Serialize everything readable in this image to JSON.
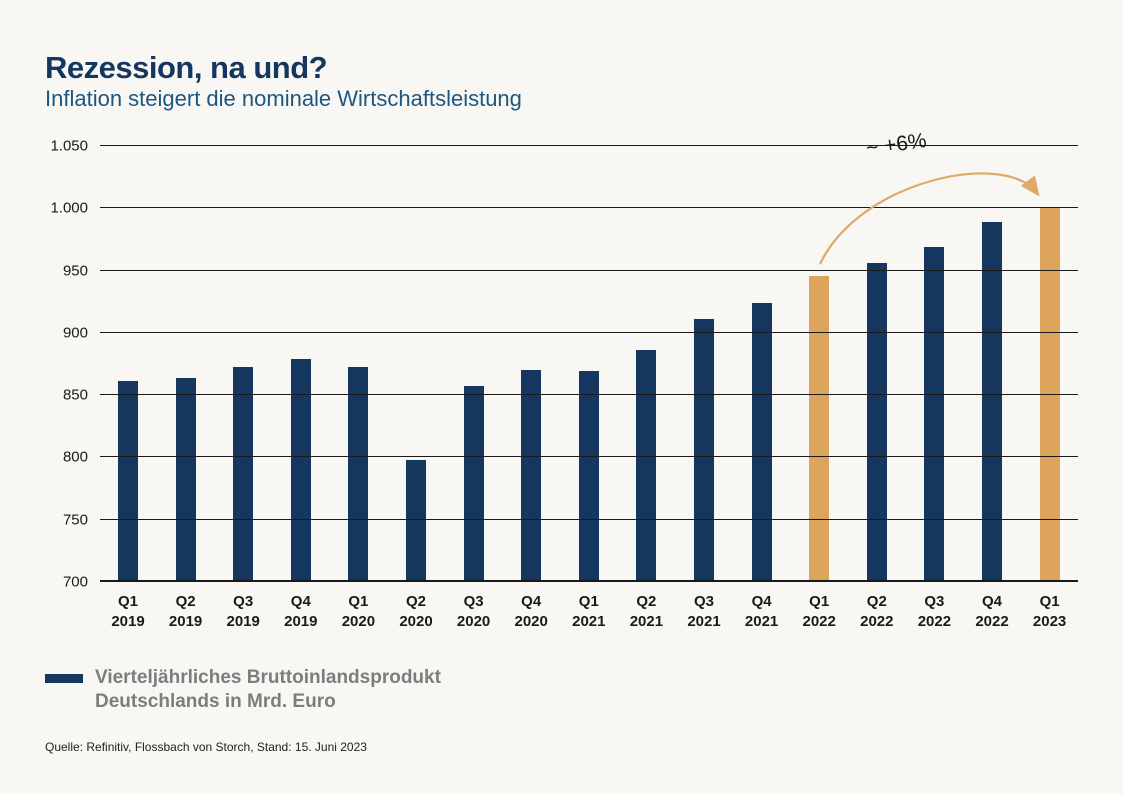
{
  "header": {
    "title": "Rezession, na und?",
    "subtitle": "Inflation steigert die nominale Wirtschaftsleistung"
  },
  "chart_data": {
    "type": "bar",
    "title": "Rezession, na und?",
    "subtitle": "Inflation steigert die nominale Wirtschaftsleistung",
    "categories": [
      {
        "quarter": "Q1",
        "year": "2019"
      },
      {
        "quarter": "Q2",
        "year": "2019"
      },
      {
        "quarter": "Q3",
        "year": "2019"
      },
      {
        "quarter": "Q4",
        "year": "2019"
      },
      {
        "quarter": "Q1",
        "year": "2020"
      },
      {
        "quarter": "Q2",
        "year": "2020"
      },
      {
        "quarter": "Q3",
        "year": "2020"
      },
      {
        "quarter": "Q4",
        "year": "2020"
      },
      {
        "quarter": "Q1",
        "year": "2021"
      },
      {
        "quarter": "Q2",
        "year": "2021"
      },
      {
        "quarter": "Q3",
        "year": "2021"
      },
      {
        "quarter": "Q4",
        "year": "2021"
      },
      {
        "quarter": "Q1",
        "year": "2022"
      },
      {
        "quarter": "Q2",
        "year": "2022"
      },
      {
        "quarter": "Q3",
        "year": "2022"
      },
      {
        "quarter": "Q4",
        "year": "2022"
      },
      {
        "quarter": "Q1",
        "year": "2023"
      }
    ],
    "values": [
      861,
      864,
      873,
      879,
      873,
      798,
      857,
      870,
      869,
      886,
      911,
      924,
      946,
      956,
      969,
      989,
      1000
    ],
    "highlight_indices": [
      12,
      16
    ],
    "ylim": [
      700,
      1050
    ],
    "y_tick_values": [
      700,
      750,
      800,
      850,
      900,
      950,
      1000,
      1050
    ],
    "y_tick_labels": [
      "700",
      "750",
      "800",
      "850",
      "900",
      "950",
      "1.000",
      "1.050"
    ],
    "grid": true,
    "annotation": "~ +6%",
    "legend_position": "bottom-left",
    "legend": {
      "line1": "Vierteljährliches Bruttoinlandsprodukt",
      "line2": "Deutschlands in Mrd. Euro"
    },
    "colors": {
      "bar": "#14365f",
      "highlight": "#dda55c",
      "arrow": "#dfa967",
      "grid": "#1a1a1a"
    }
  },
  "source": "Quelle: Refinitiv, Flossbach von Storch, Stand: 15. Juni 2023"
}
